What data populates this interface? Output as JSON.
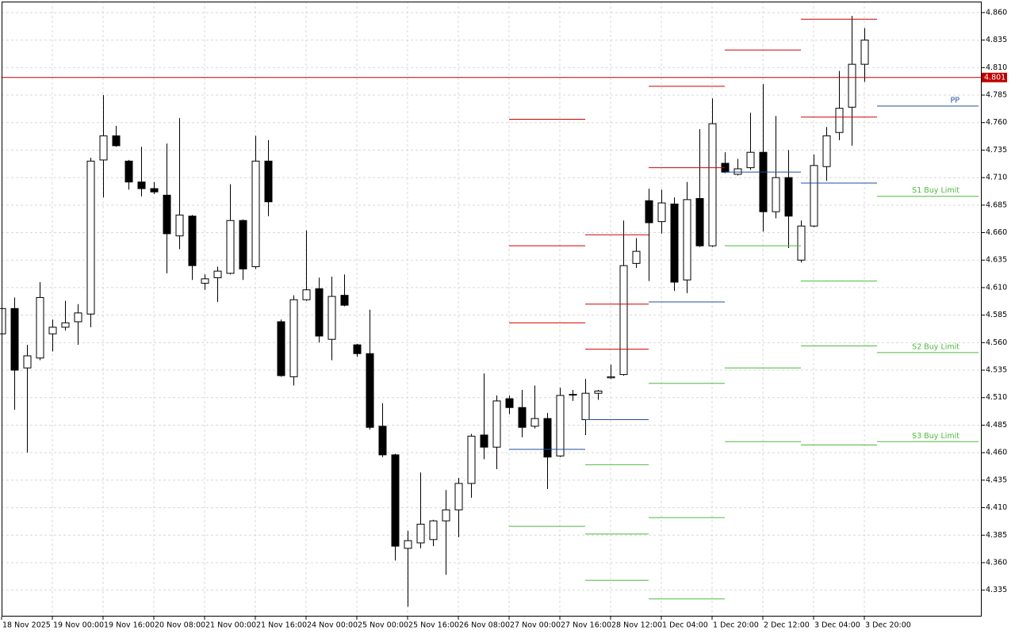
{
  "chart_data": {
    "type": "candlestick",
    "categories": [
      "18 Nov 2025",
      null,
      null,
      null,
      "19 Nov 00:00",
      null,
      null,
      null,
      "19 Nov 16:00",
      null,
      null,
      null,
      "20 Nov 08:00",
      null,
      null,
      null,
      "21 Nov 00:00",
      null,
      null,
      null,
      "21 Nov 16:00",
      null,
      null,
      null,
      "24 Nov 00:00",
      null,
      null,
      null,
      "25 Nov 00:00",
      null,
      null,
      null,
      "25 Nov 16:00",
      null,
      null,
      null,
      "26 Nov 08:00",
      null,
      null,
      null,
      "27 Nov 00:00",
      null,
      null,
      null,
      "27 Nov 16:00",
      null,
      null,
      null,
      "28 Nov 12:00",
      null,
      null,
      null,
      "1 Dec 04:00",
      null,
      null,
      null,
      "1 Dec 20:00",
      null,
      null,
      null,
      "2 Dec 12:00",
      null,
      null,
      null,
      "3 Dec 04:00",
      null,
      null,
      null,
      "3 Dec 20:00"
    ],
    "open": [
      4.568,
      4.591,
      4.537,
      4.546,
      4.568,
      4.574,
      4.579,
      4.586,
      4.726,
      4.748,
      4.725,
      4.706,
      4.7,
      4.694,
      4.657,
      4.675,
      4.614,
      4.619,
      4.623,
      4.671,
      4.629,
      4.725,
      4.579,
      4.529,
      4.599,
      4.609,
      4.563,
      4.603,
      4.558,
      4.55,
      4.484,
      4.458,
      4.373,
      4.378,
      4.381,
      4.398,
      4.408,
      4.432,
      4.476,
      4.465,
      4.509,
      4.501,
      4.484,
      4.491,
      4.457,
      4.513,
      4.49,
      4.514,
      4.528,
      4.531,
      4.632,
      4.689,
      4.67,
      4.686,
      4.617,
      4.691,
      4.648,
      4.723,
      4.713,
      4.719,
      4.733,
      4.679,
      4.71,
      4.635,
      4.666,
      4.72,
      4.751,
      4.774,
      4.813
    ],
    "high": [
      4.592,
      4.601,
      4.558,
      4.615,
      4.581,
      4.598,
      4.595,
      4.728,
      4.785,
      4.757,
      4.726,
      4.738,
      4.706,
      4.741,
      4.764,
      4.676,
      4.622,
      4.629,
      4.704,
      4.672,
      4.748,
      4.744,
      4.581,
      4.603,
      4.662,
      4.619,
      4.62,
      4.622,
      4.559,
      4.59,
      4.505,
      4.459,
      4.389,
      4.442,
      4.399,
      4.426,
      4.437,
      4.477,
      4.532,
      4.512,
      4.512,
      4.517,
      4.521,
      4.496,
      4.519,
      4.517,
      4.527,
      4.517,
      4.54,
      4.671,
      4.655,
      4.7,
      4.699,
      4.692,
      4.706,
      4.754,
      4.782,
      4.733,
      4.727,
      4.769,
      4.795,
      4.766,
      4.735,
      4.671,
      4.731,
      4.756,
      4.807,
      4.857,
      4.846
    ],
    "low": [
      4.566,
      4.499,
      4.46,
      4.544,
      4.552,
      4.571,
      4.558,
      4.574,
      4.692,
      4.738,
      4.699,
      4.693,
      4.695,
      4.623,
      4.645,
      4.617,
      4.608,
      4.597,
      4.622,
      4.617,
      4.627,
      4.675,
      4.529,
      4.521,
      4.598,
      4.56,
      4.544,
      4.593,
      4.547,
      4.481,
      4.456,
      4.362,
      4.32,
      4.373,
      4.375,
      4.349,
      4.383,
      4.419,
      4.454,
      4.445,
      4.495,
      4.474,
      4.482,
      4.427,
      4.456,
      4.507,
      4.476,
      4.508,
      4.527,
      4.53,
      4.628,
      4.616,
      4.659,
      4.607,
      4.605,
      4.647,
      4.647,
      4.714,
      4.712,
      4.717,
      4.661,
      4.673,
      4.646,
      4.633,
      4.665,
      4.707,
      4.744,
      4.739,
      4.797
    ],
    "close": [
      4.591,
      4.535,
      4.548,
      4.601,
      4.574,
      4.578,
      4.587,
      4.725,
      4.748,
      4.739,
      4.706,
      4.7,
      4.697,
      4.659,
      4.676,
      4.63,
      4.618,
      4.625,
      4.671,
      4.627,
      4.725,
      4.688,
      4.53,
      4.599,
      4.608,
      4.566,
      4.602,
      4.594,
      4.55,
      4.483,
      4.458,
      4.375,
      4.38,
      4.395,
      4.398,
      4.408,
      4.432,
      4.475,
      4.465,
      4.507,
      4.501,
      4.483,
      4.491,
      4.456,
      4.512,
      4.513,
      4.514,
      4.516,
      4.529,
      4.63,
      4.643,
      4.669,
      4.687,
      4.615,
      4.69,
      4.648,
      4.759,
      4.715,
      4.718,
      4.733,
      4.679,
      4.71,
      4.675,
      4.666,
      4.721,
      4.748,
      4.773,
      4.813,
      4.835
    ],
    "up_color": "#ffffff",
    "down_color": "#000000",
    "outline_color": "#000000",
    "ylim": [
      4.311,
      4.87
    ],
    "yticks": [
      {
        "value": 4.86,
        "label": "4.860"
      },
      4.835,
      {
        "value": 4.81,
        "label": "4.810"
      },
      4.785,
      {
        "value": 4.76,
        "label": "4.760"
      },
      4.735,
      {
        "value": 4.71,
        "label": "4.710"
      },
      4.685,
      {
        "value": 4.66,
        "label": "4.660"
      },
      4.635,
      {
        "value": 4.61,
        "label": "4.610"
      },
      4.585,
      {
        "value": 4.56,
        "label": "4.560"
      },
      4.535,
      {
        "value": 4.51,
        "label": "4.510"
      },
      4.485,
      {
        "value": 4.46,
        "label": "4.460"
      },
      4.435,
      {
        "value": 4.41,
        "label": "4.410"
      },
      4.385,
      {
        "value": 4.36,
        "label": "4.360"
      },
      4.335
    ],
    "grid": true,
    "last_price": 4.801,
    "last_price_color": "#c00000",
    "pivot_colors": {
      "resistance": "#d00000",
      "pp": "#1f4f9f",
      "support": "#4cbb3c"
    },
    "pivots": [
      {
        "start": 40,
        "end": 46,
        "resistance": [
          4.763,
          4.648,
          4.578
        ],
        "pp": 4.463,
        "support": [
          4.393
        ]
      },
      {
        "start": 46,
        "end": 51,
        "resistance": [
          4.658,
          4.595,
          4.554
        ],
        "pp": 4.49,
        "support": [
          4.449,
          4.386,
          4.344
        ]
      },
      {
        "start": 51,
        "end": 57,
        "resistance": [
          4.793,
          4.719
        ],
        "pp": 4.597,
        "support": [
          4.523,
          4.401,
          4.327
        ]
      },
      {
        "start": 57,
        "end": 63,
        "resistance": [
          4.826
        ],
        "pp": 4.715,
        "support": [
          4.648,
          4.537,
          4.47
        ]
      },
      {
        "start": 63,
        "end": 69,
        "resistance": [
          4.854,
          4.765
        ],
        "pp": 4.705,
        "support": [
          4.616,
          4.557,
          4.467
        ]
      },
      {
        "start": 69,
        "end": 77,
        "resistance": [],
        "pp": {
          "value": 4.775,
          "label": "PP"
        },
        "support": [
          {
            "value": 4.693,
            "label": "S1 Buy Limit"
          },
          {
            "value": 4.551,
            "label": "S2 Buy Limit"
          },
          {
            "value": 4.47,
            "label": "S3 Buy Limit"
          }
        ]
      }
    ]
  }
}
